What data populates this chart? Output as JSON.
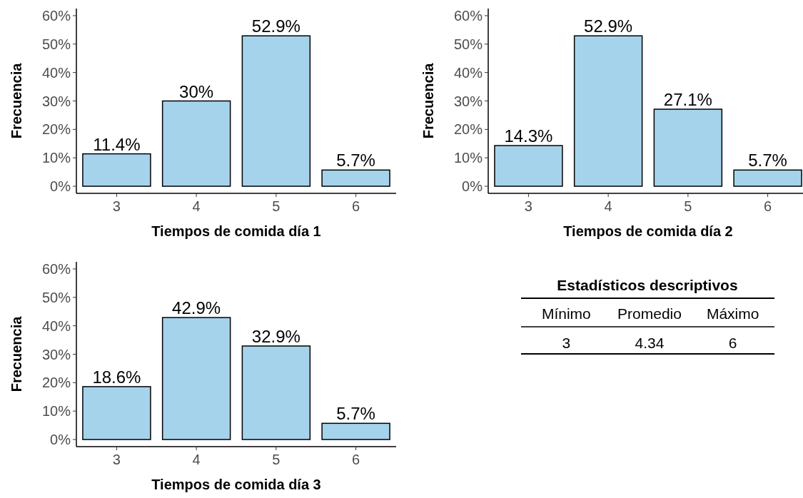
{
  "chart_data": [
    {
      "type": "bar",
      "xlabel": "Tiempos de comida día 1",
      "ylabel": "Frecuencia",
      "categories": [
        "3",
        "4",
        "5",
        "6"
      ],
      "values": [
        11.4,
        30,
        52.9,
        5.7
      ],
      "value_labels": [
        "11.4%",
        "30%",
        "52.9%",
        "5.7%"
      ],
      "color": "#a6d3ec",
      "ylim": [
        -2.5,
        62.5
      ],
      "yticks": [
        {
          "value": 0,
          "label": "0%"
        },
        {
          "value": 10,
          "label": "10%"
        },
        {
          "value": 20,
          "label": "20%"
        },
        {
          "value": 30,
          "label": "30%"
        },
        {
          "value": 40,
          "label": "40%"
        },
        {
          "value": 50,
          "label": "50%"
        },
        {
          "value": 60,
          "label": "60%"
        }
      ],
      "grid": false
    },
    {
      "type": "bar",
      "xlabel": "Tiempos de comida día 2",
      "ylabel": "Frecuencia",
      "categories": [
        "3",
        "4",
        "5",
        "6"
      ],
      "values": [
        14.3,
        52.9,
        27.1,
        5.7
      ],
      "value_labels": [
        "14.3%",
        "52.9%",
        "27.1%",
        "5.7%"
      ],
      "color": "#a6d3ec",
      "ylim": [
        -2.5,
        62.5
      ],
      "yticks": [
        {
          "value": 0,
          "label": "0%"
        },
        {
          "value": 10,
          "label": "10%"
        },
        {
          "value": 20,
          "label": "20%"
        },
        {
          "value": 30,
          "label": "30%"
        },
        {
          "value": 40,
          "label": "40%"
        },
        {
          "value": 50,
          "label": "50%"
        },
        {
          "value": 60,
          "label": "60%"
        }
      ],
      "grid": false
    },
    {
      "type": "bar",
      "xlabel": "Tiempos de comida día 3",
      "ylabel": "Frecuencia",
      "categories": [
        "3",
        "4",
        "5",
        "6"
      ],
      "values": [
        18.6,
        42.9,
        32.9,
        5.7
      ],
      "value_labels": [
        "18.6%",
        "42.9%",
        "32.9%",
        "5.7%"
      ],
      "color": "#a6d3ec",
      "ylim": [
        -2.5,
        62.5
      ],
      "yticks": [
        {
          "value": 0,
          "label": "0%"
        },
        {
          "value": 10,
          "label": "10%"
        },
        {
          "value": 20,
          "label": "20%"
        },
        {
          "value": 30,
          "label": "30%"
        },
        {
          "value": 40,
          "label": "40%"
        },
        {
          "value": 50,
          "label": "50%"
        },
        {
          "value": 60,
          "label": "60%"
        }
      ],
      "grid": false
    },
    {
      "type": "other",
      "title": "Estadísticos descriptivos",
      "categories": [
        "Mínimo",
        "Promedio",
        "Máximo"
      ],
      "values": [
        3,
        4.34,
        6
      ],
      "data_labels": true
    }
  ]
}
